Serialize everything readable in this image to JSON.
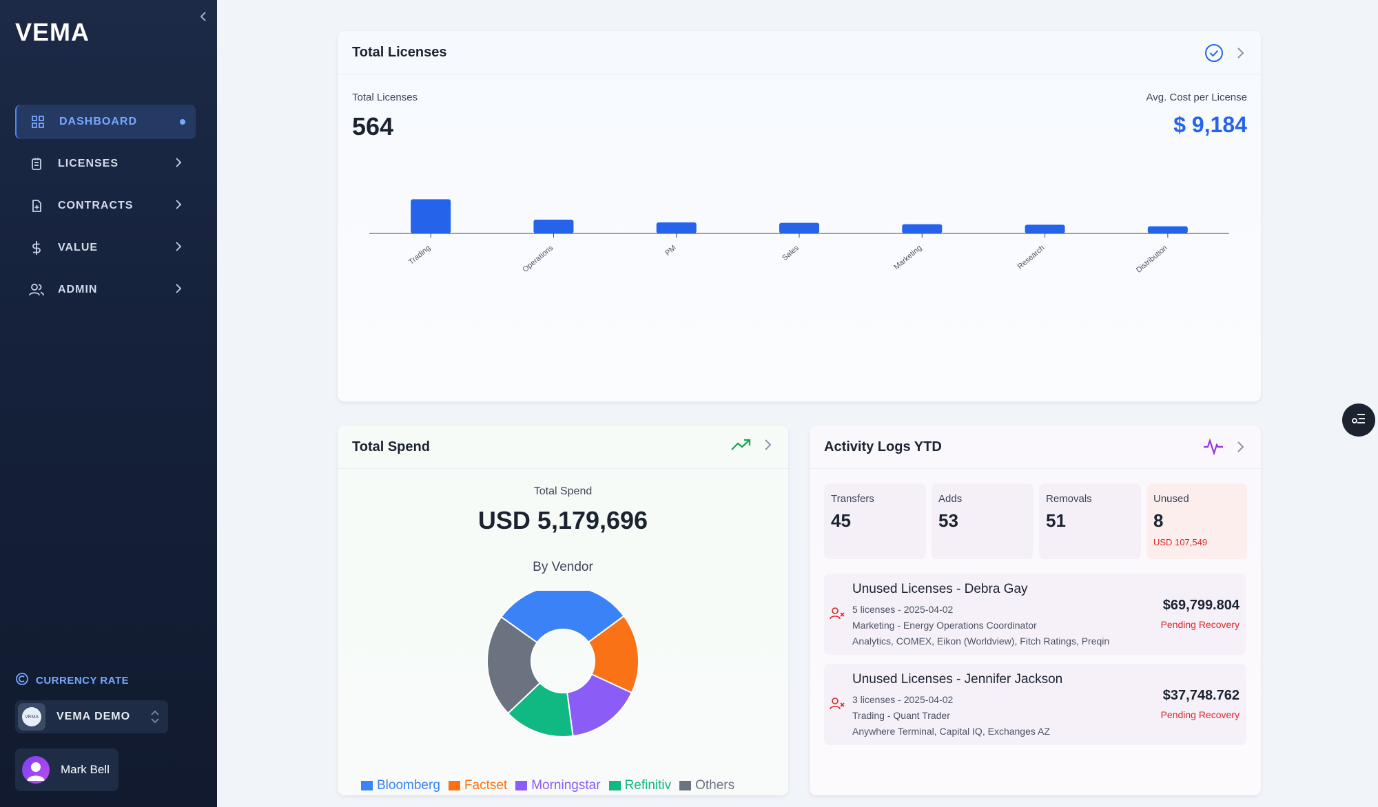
{
  "sidebar": {
    "logo": "VEMA",
    "items": [
      {
        "label": "DASHBOARD",
        "icon": "grid-icon"
      },
      {
        "label": "LICENSES",
        "icon": "clipboard-icon"
      },
      {
        "label": "CONTRACTS",
        "icon": "file-plus-icon"
      },
      {
        "label": "VALUE",
        "icon": "dollar-icon"
      },
      {
        "label": "ADMIN",
        "icon": "users-icon"
      }
    ],
    "currency_label": "CURRENCY RATE",
    "org_name": "VEMA DEMO",
    "org_logo_text": "VEMA",
    "user_name": "Mark Bell"
  },
  "licenses_card": {
    "title": "Total Licenses",
    "total_label": "Total Licenses",
    "total_value": "564",
    "avg_label": "Avg. Cost per License",
    "avg_value": "$ 9,184"
  },
  "chart_data": {
    "type": "bar",
    "categories": [
      "Trading",
      "Operations",
      "PM",
      "Sales",
      "Marketing",
      "Research",
      "Distribution"
    ],
    "values": [
      149,
      60,
      48,
      46,
      40,
      38,
      31
    ],
    "ylim": [
      0,
      150
    ],
    "grid": false,
    "colors": {
      "bar": "#2563eb"
    }
  },
  "spend_card": {
    "title": "Total Spend",
    "total_label": "Total Spend",
    "total_value": "USD 5,179,696",
    "vendor_label": "By Vendor",
    "vendors": [
      {
        "name": "Bloomberg",
        "share": 0.3,
        "color": "#3b82f6"
      },
      {
        "name": "Factset",
        "share": 0.17,
        "color": "#f97316"
      },
      {
        "name": "Morningstar",
        "share": 0.16,
        "color": "#8b5cf6"
      },
      {
        "name": "Refinitiv",
        "share": 0.15,
        "color": "#10b981"
      },
      {
        "name": "Others",
        "share": 0.22,
        "color": "#6b7280"
      }
    ]
  },
  "activity_card": {
    "title": "Activity Logs YTD",
    "stats": [
      {
        "label": "Transfers",
        "value": "45"
      },
      {
        "label": "Adds",
        "value": "53"
      },
      {
        "label": "Removals",
        "value": "51"
      },
      {
        "label": "Unused",
        "value": "8",
        "sub": "USD 107,549"
      }
    ],
    "logs": [
      {
        "title": "Unused Licenses - Debra Gay",
        "line1": "5 licenses - 2025-04-02",
        "line2": "Marketing - Energy Operations Coordinator",
        "line3": "Analytics, COMEX, Eikon (Worldview), Fitch Ratings, Preqin",
        "amount": "$69,799.804",
        "status": "Pending Recovery"
      },
      {
        "title": "Unused Licenses - Jennifer Jackson",
        "line1": "3 licenses - 2025-04-02",
        "line2": "Trading - Quant Trader",
        "line3": "Anywhere Terminal, Capital IQ, Exchanges AZ",
        "amount": "$37,748.762",
        "status": "Pending Recovery"
      }
    ]
  },
  "colors": {
    "accent": "#2563eb",
    "danger": "#dc2626",
    "success": "#16a34a",
    "activity": "#9333ea"
  }
}
